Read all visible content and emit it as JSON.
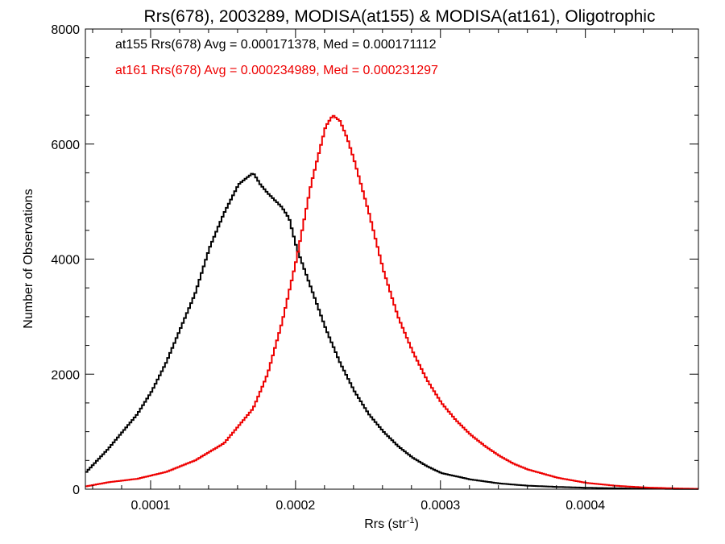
{
  "chart_data": {
    "type": "line",
    "title": "Rrs(678), 2003289, MODISA(at155) & MODISA(at161), Oligotrophic",
    "xlabel": "Rrs (str",
    "xlabel_sup": "-1",
    "xlabel_close": ")",
    "ylabel": "Number of Observations",
    "xlim": [
      5.5e-05,
      0.000478
    ],
    "ylim": [
      0,
      8000
    ],
    "x_ticks": [
      0.0001,
      0.0002,
      0.0003,
      0.0004
    ],
    "x_tick_labels": [
      "0.0001",
      "0.0002",
      "0.0003",
      "0.0004"
    ],
    "y_ticks": [
      0,
      2000,
      4000,
      6000,
      8000
    ],
    "y_tick_labels": [
      "0",
      "2000",
      "4000",
      "6000",
      "8000"
    ],
    "grid": false,
    "legend_position": "top-left",
    "series": [
      {
        "name": "at155",
        "label": "at155 Rrs(678) Avg = 0.000171378, Med = 0.000171112",
        "color": "#000000",
        "x": [
          5.5e-05,
          7e-05,
          8e-05,
          9e-05,
          0.0001,
          0.00011,
          0.00012,
          0.00013,
          0.00014,
          0.00015,
          0.00016,
          0.000165,
          0.00017,
          0.000175,
          0.00018,
          0.00019,
          0.000195,
          0.0002,
          0.00021,
          0.00022,
          0.00023,
          0.00024,
          0.00025,
          0.00026,
          0.00027,
          0.00028,
          0.00029,
          0.0003,
          0.00032,
          0.00034,
          0.00036,
          0.00038,
          0.0004,
          0.00043,
          0.00046,
          0.000478
        ],
        "y": [
          300,
          700,
          1000,
          1300,
          1700,
          2200,
          2800,
          3400,
          4200,
          4800,
          5300,
          5400,
          5500,
          5300,
          5150,
          4900,
          4700,
          4200,
          3500,
          2800,
          2200,
          1700,
          1300,
          1000,
          750,
          550,
          400,
          280,
          170,
          100,
          60,
          40,
          25,
          12,
          5,
          2
        ]
      },
      {
        "name": "at161",
        "label": "at161 Rrs(678) Avg = 0.000234989, Med = 0.000231297",
        "color": "#ee0000",
        "x": [
          5.5e-05,
          7e-05,
          9e-05,
          0.00011,
          0.00013,
          0.00015,
          0.00017,
          0.00018,
          0.00019,
          0.0002,
          0.00021,
          0.00022,
          0.000225,
          0.00023,
          0.000235,
          0.00024,
          0.00025,
          0.00026,
          0.00027,
          0.00028,
          0.00029,
          0.0003,
          0.00031,
          0.00032,
          0.00033,
          0.00034,
          0.00035,
          0.00036,
          0.00038,
          0.0004,
          0.00042,
          0.00044,
          0.00046,
          0.000478
        ],
        "y": [
          50,
          120,
          180,
          300,
          500,
          800,
          1400,
          2000,
          2900,
          4000,
          5300,
          6300,
          6500,
          6400,
          6100,
          5700,
          4800,
          3800,
          3000,
          2400,
          1900,
          1500,
          1200,
          950,
          750,
          580,
          440,
          340,
          200,
          110,
          60,
          30,
          15,
          5
        ]
      }
    ]
  }
}
